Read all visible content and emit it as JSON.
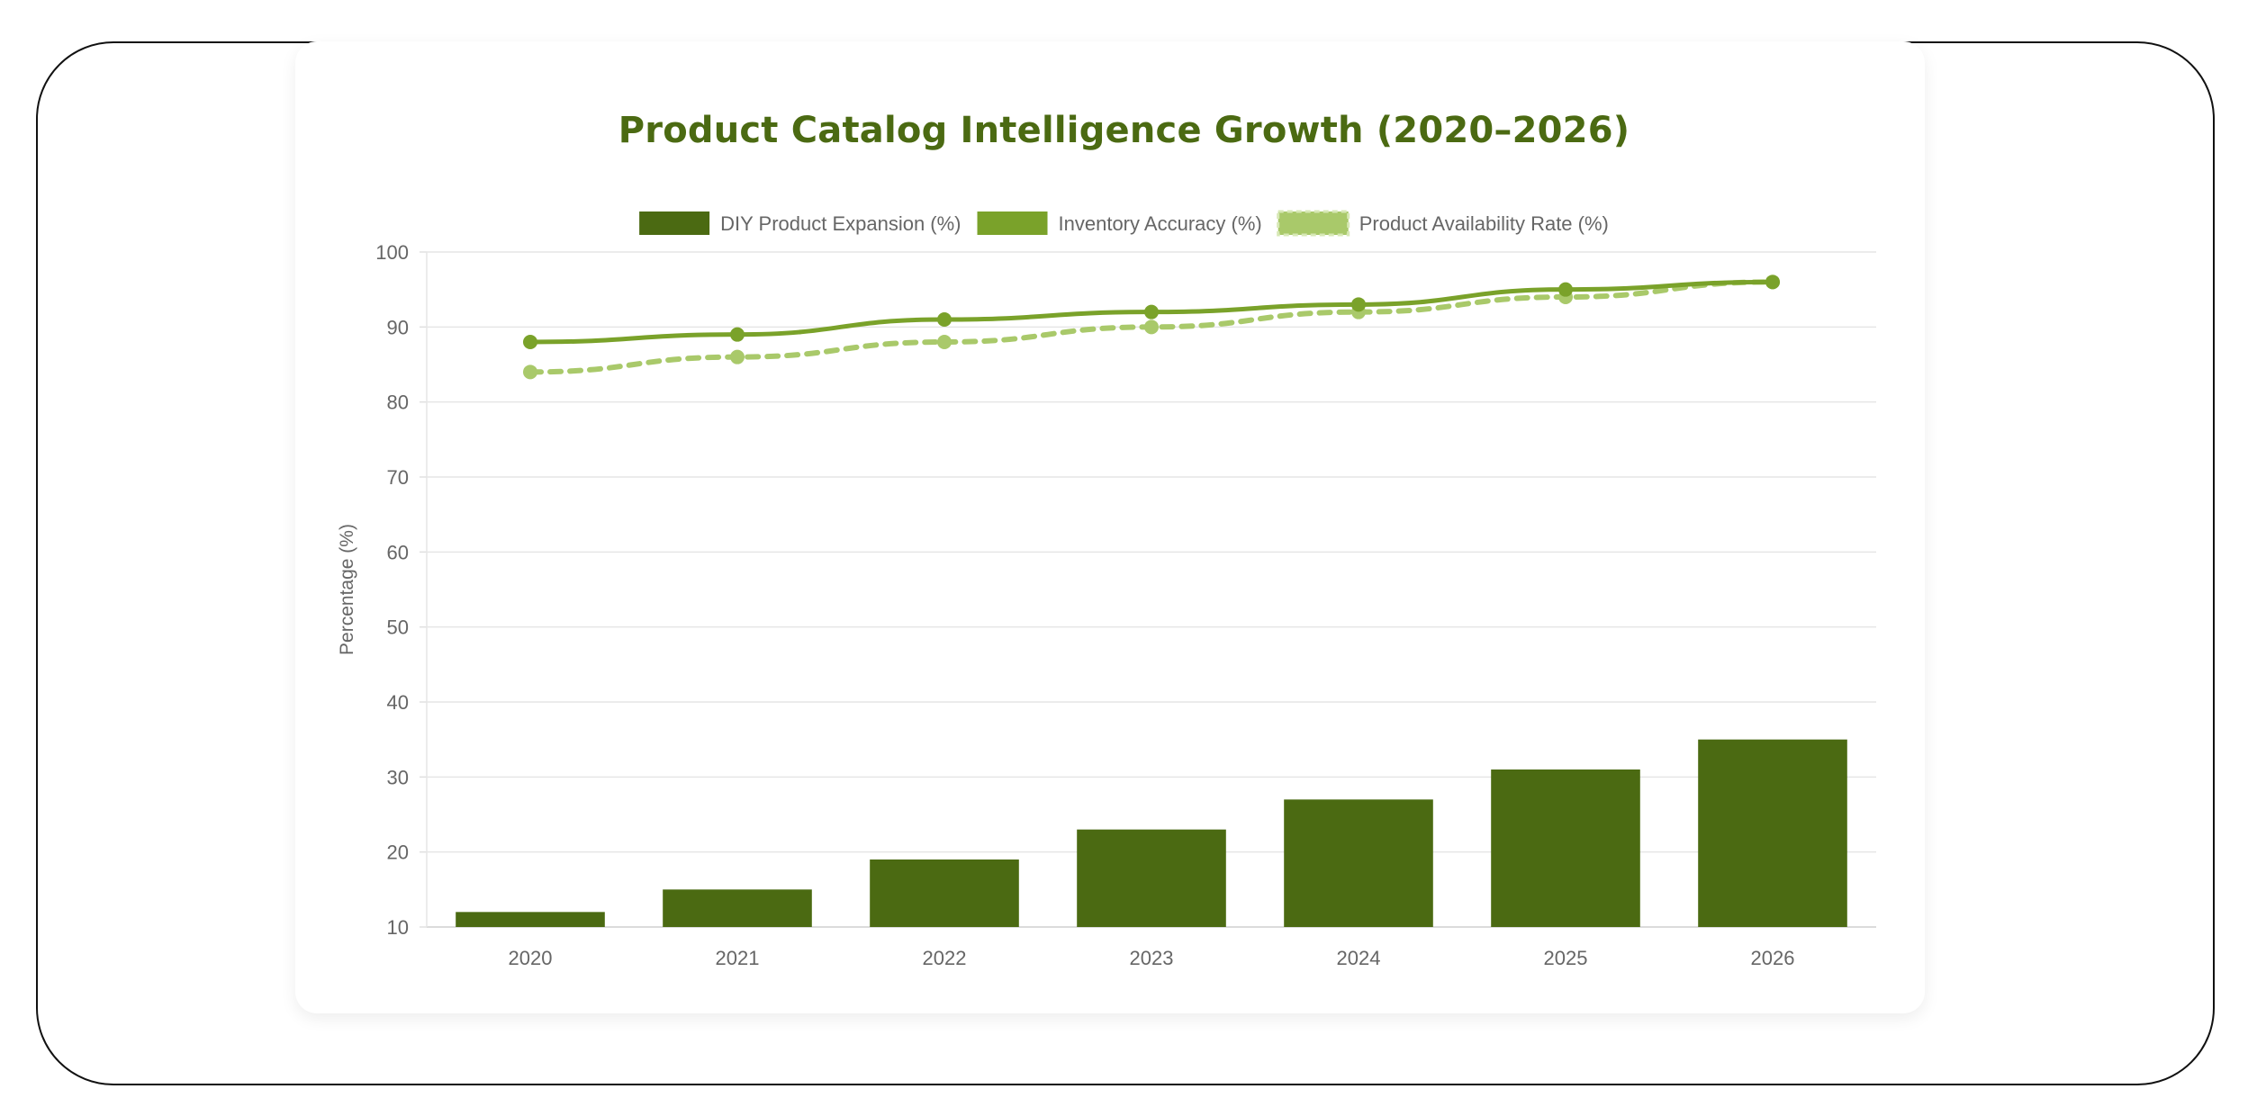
{
  "chart_data": {
    "type": "bar",
    "title": "Product Catalog Intelligence Growth (2020–2026)",
    "xlabel": "",
    "ylabel": "Percentage (%)",
    "ylim": [
      10,
      100
    ],
    "yticks": [
      10,
      20,
      30,
      40,
      50,
      60,
      70,
      80,
      90,
      100
    ],
    "grid": true,
    "legend_position": "top",
    "categories": [
      "2020",
      "2021",
      "2022",
      "2023",
      "2024",
      "2025",
      "2026"
    ],
    "series": [
      {
        "name": "DIY Product Expansion (%)",
        "type": "bar",
        "color": "#4b6a12",
        "values": [
          12,
          15,
          19,
          23,
          27,
          31,
          35
        ]
      },
      {
        "name": "Inventory Accuracy (%)",
        "type": "line",
        "style": "solid",
        "color": "#7aa22a",
        "values": [
          88,
          89,
          91,
          92,
          93,
          95,
          96
        ]
      },
      {
        "name": "Product Availability Rate (%)",
        "type": "line",
        "style": "dashed",
        "color": "#a9c96a",
        "values": [
          84,
          86,
          88,
          90,
          92,
          94,
          96
        ]
      }
    ]
  }
}
